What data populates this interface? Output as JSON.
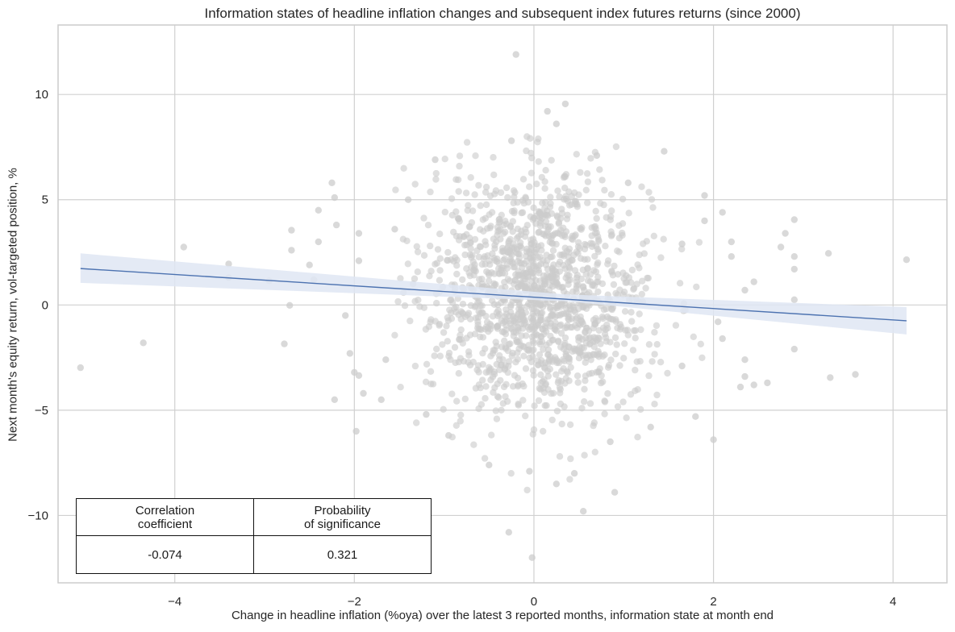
{
  "chart_data": {
    "type": "scatter",
    "title": "Information states of headline inflation changes and subsequent index futures returns (since 2000)",
    "xlabel": "Change in headline inflation (%oya) over the latest 3 reported months, information state at month end",
    "ylabel": "Next month's equity return, vol-targeted position, %",
    "xlim": [
      -5.3,
      4.6
    ],
    "ylim": [
      -13.2,
      13.3
    ],
    "x_ticks": [
      -4,
      -2,
      0,
      2,
      4
    ],
    "x_tick_labels": [
      "−4",
      "−2",
      "0",
      "2",
      "4"
    ],
    "y_ticks": [
      -10,
      -5,
      0,
      5,
      10
    ],
    "y_tick_labels": [
      "−10",
      "−5",
      "0",
      "5",
      "10"
    ],
    "grid": true,
    "point_color": "#cccccc",
    "line_color": "#4c72b0",
    "band_color": "#dfe6f3",
    "regression": {
      "x_start": -5.05,
      "y_start": 1.73,
      "x_end": 4.15,
      "y_end": -0.75,
      "band": [
        [
          -5.05,
          1.05,
          2.45
        ],
        [
          0.35,
          0.18,
          0.5
        ],
        [
          4.15,
          -1.4,
          -0.1
        ]
      ]
    },
    "outlier_points": [
      [
        -5.05,
        -2.98
      ],
      [
        -4.35,
        -1.8
      ],
      [
        -3.9,
        2.75
      ],
      [
        -3.4,
        1.95
      ],
      [
        -3.4,
        1.3
      ],
      [
        -2.95,
        1.15
      ],
      [
        -2.78,
        -1.85
      ],
      [
        -2.72,
        -0.02
      ],
      [
        -2.7,
        2.6
      ],
      [
        -2.7,
        3.55
      ],
      [
        -2.5,
        1.9
      ],
      [
        -2.45,
        1.2
      ],
      [
        -2.4,
        4.5
      ],
      [
        -2.4,
        3.0
      ],
      [
        -2.25,
        5.8
      ],
      [
        -2.22,
        5.1
      ],
      [
        -2.2,
        3.8
      ],
      [
        -2.22,
        -4.5
      ],
      [
        -2.05,
        -2.3
      ],
      [
        -2.0,
        -3.2
      ],
      [
        -1.95,
        -3.35
      ],
      [
        -1.9,
        -4.2
      ],
      [
        -1.95,
        2.1
      ],
      [
        -1.95,
        3.4
      ],
      [
        -2.1,
        -0.5
      ],
      [
        -1.98,
        -6.0
      ],
      [
        -1.7,
        -4.5
      ],
      [
        -0.28,
        -10.8
      ],
      [
        -0.02,
        -12.0
      ],
      [
        -0.2,
        11.9
      ],
      [
        0.35,
        9.55
      ],
      [
        0.15,
        9.2
      ],
      [
        0.25,
        8.6
      ],
      [
        1.45,
        7.3
      ],
      [
        1.9,
        5.2
      ],
      [
        2.1,
        4.4
      ],
      [
        2.2,
        3.0
      ],
      [
        2.2,
        2.3
      ],
      [
        2.35,
        0.7
      ],
      [
        2.45,
        1.1
      ],
      [
        2.75,
        2.75
      ],
      [
        2.8,
        3.4
      ],
      [
        2.9,
        4.05
      ],
      [
        2.9,
        2.3
      ],
      [
        2.9,
        1.7
      ],
      [
        2.9,
        0.25
      ],
      [
        2.9,
        -2.1
      ],
      [
        2.3,
        -3.9
      ],
      [
        2.45,
        -3.8
      ],
      [
        2.6,
        -3.7
      ],
      [
        3.28,
        2.45
      ],
      [
        3.3,
        -3.45
      ],
      [
        3.58,
        -3.3
      ],
      [
        4.15,
        2.15
      ],
      [
        2.0,
        -6.4
      ],
      [
        0.9,
        -8.9
      ],
      [
        0.55,
        -9.8
      ],
      [
        2.35,
        -2.6
      ],
      [
        2.35,
        -3.4
      ],
      [
        2.05,
        -0.8
      ],
      [
        1.8,
        -5.3
      ],
      [
        1.9,
        4.0
      ],
      [
        2.1,
        -1.6
      ],
      [
        0.85,
        -6.5
      ],
      [
        1.3,
        -5.8
      ],
      [
        1.05,
        5.8
      ],
      [
        -1.1,
        6.9
      ],
      [
        -1.4,
        5.0
      ],
      [
        -1.2,
        -5.2
      ],
      [
        -0.95,
        -6.2
      ],
      [
        -1.55,
        3.6
      ],
      [
        -1.65,
        -2.6
      ],
      [
        1.65,
        -2.9
      ],
      [
        1.65,
        2.9
      ],
      [
        -0.25,
        7.8
      ],
      [
        0.25,
        -8.5
      ],
      [
        -0.5,
        -7.6
      ],
      [
        0.7,
        7.1
      ],
      [
        -0.05,
        -7.9
      ],
      [
        0.45,
        -8.0
      ]
    ],
    "cloud": {
      "points_count": 1450,
      "x_center": 0.05,
      "x_spread": 0.62,
      "y_center": 0.55,
      "y_spread": 2.85,
      "x_min": -1.6,
      "x_max": 1.9,
      "y_min": -9.8,
      "y_max": 8.0
    }
  },
  "stats_table": {
    "headers": [
      "Correlation\ncoefficient",
      "Probability\nof significance"
    ],
    "header_lines": [
      [
        "Correlation",
        "coefficient"
      ],
      [
        "Probability",
        "of significance"
      ]
    ],
    "values": [
      "-0.074",
      "0.321"
    ]
  }
}
